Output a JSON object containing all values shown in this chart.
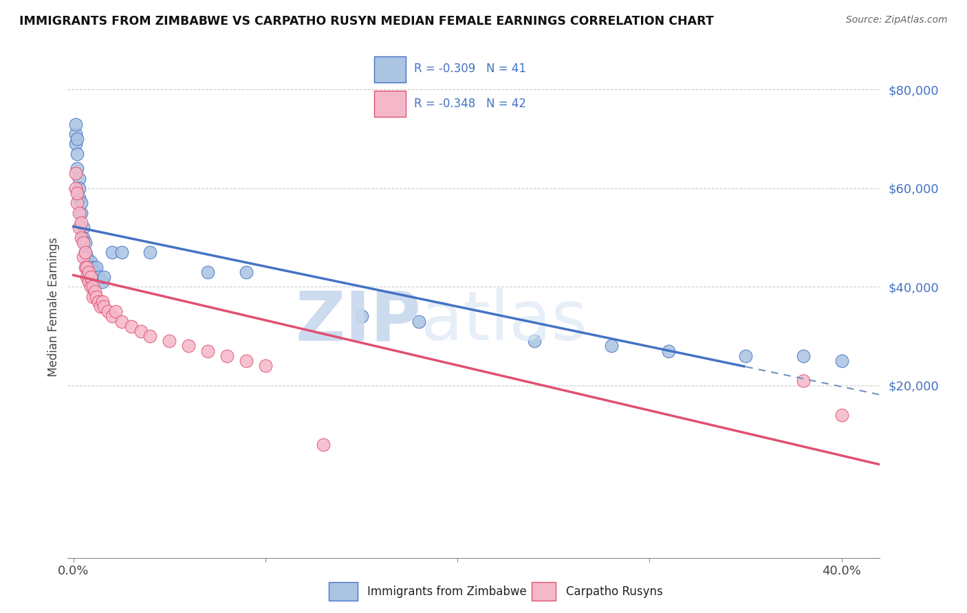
{
  "title": "IMMIGRANTS FROM ZIMBABWE VS CARPATHO RUSYN MEDIAN FEMALE EARNINGS CORRELATION CHART",
  "source": "Source: ZipAtlas.com",
  "ylabel": "Median Female Earnings",
  "watermark_zip": "ZIP",
  "watermark_atlas": "atlas",
  "legend_label1": "Immigrants from Zimbabwe",
  "legend_label2": "Carpatho Rusyns",
  "R1": -0.309,
  "N1": 41,
  "R2": -0.348,
  "N2": 42,
  "color1": "#aac4e2",
  "color2": "#f5b8ca",
  "line_color1": "#4472c4",
  "line_color2": "#e05070",
  "dashed_color": "#7090c0",
  "xlim": [
    -0.003,
    0.42
  ],
  "ylim": [
    -15000,
    87000
  ],
  "blue_x": [
    0.001,
    0.001,
    0.001,
    0.002,
    0.002,
    0.002,
    0.003,
    0.003,
    0.003,
    0.004,
    0.004,
    0.005,
    0.005,
    0.006,
    0.006,
    0.007,
    0.007,
    0.008,
    0.008,
    0.009,
    0.009,
    0.01,
    0.01,
    0.011,
    0.012,
    0.013,
    0.015,
    0.016,
    0.02,
    0.025,
    0.04,
    0.07,
    0.09,
    0.15,
    0.18,
    0.24,
    0.28,
    0.31,
    0.35,
    0.38,
    0.4
  ],
  "blue_y": [
    69000,
    71000,
    73000,
    67000,
    70000,
    64000,
    62000,
    60000,
    58000,
    55000,
    57000,
    52000,
    50000,
    47000,
    49000,
    44000,
    46000,
    44000,
    42000,
    43000,
    45000,
    42000,
    44000,
    43000,
    44000,
    42000,
    41000,
    42000,
    47000,
    47000,
    47000,
    43000,
    43000,
    34000,
    33000,
    29000,
    28000,
    27000,
    26000,
    26000,
    25000
  ],
  "pink_x": [
    0.001,
    0.001,
    0.002,
    0.002,
    0.003,
    0.003,
    0.004,
    0.004,
    0.005,
    0.005,
    0.006,
    0.006,
    0.007,
    0.007,
    0.008,
    0.008,
    0.009,
    0.009,
    0.01,
    0.01,
    0.011,
    0.012,
    0.013,
    0.014,
    0.015,
    0.016,
    0.018,
    0.02,
    0.022,
    0.025,
    0.03,
    0.035,
    0.04,
    0.05,
    0.06,
    0.07,
    0.08,
    0.09,
    0.1,
    0.13,
    0.38,
    0.4
  ],
  "pink_y": [
    63000,
    60000,
    57000,
    59000,
    55000,
    52000,
    53000,
    50000,
    49000,
    46000,
    47000,
    44000,
    44000,
    42000,
    41000,
    43000,
    40000,
    42000,
    40000,
    38000,
    39000,
    38000,
    37000,
    36000,
    37000,
    36000,
    35000,
    34000,
    35000,
    33000,
    32000,
    31000,
    30000,
    29000,
    28000,
    27000,
    26000,
    25000,
    24000,
    8000,
    21000,
    14000
  ],
  "background_color": "#ffffff",
  "grid_color": "#cccccc"
}
